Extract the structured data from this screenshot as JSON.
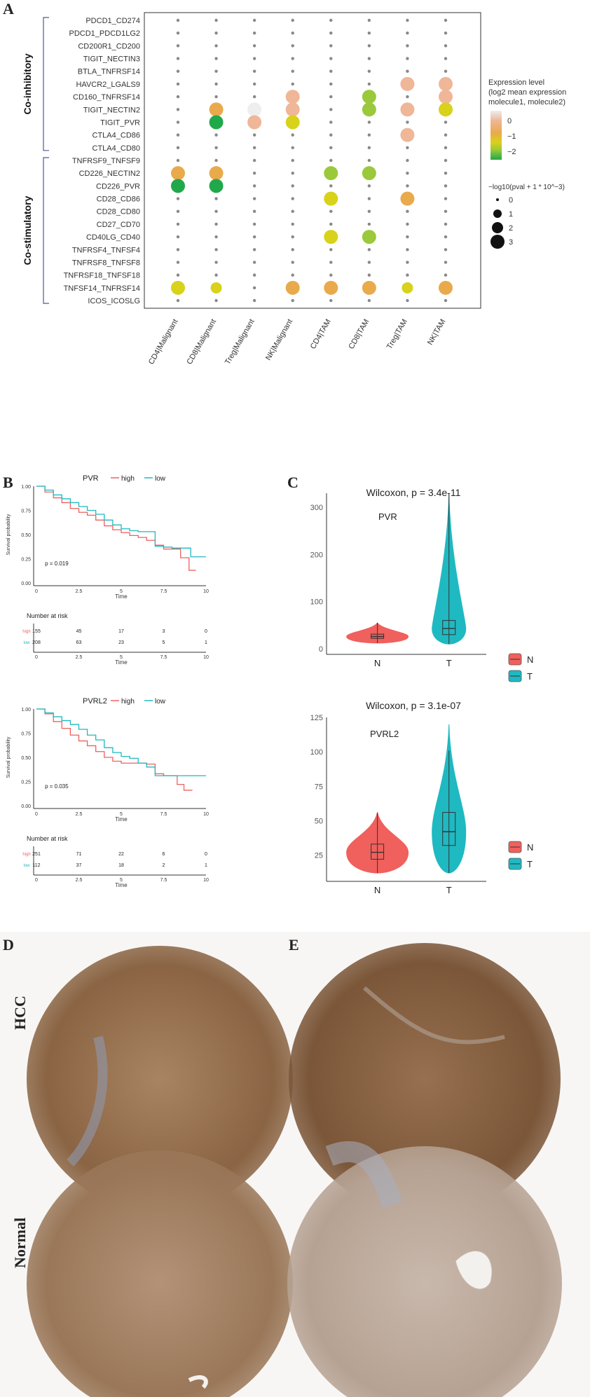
{
  "panels": {
    "a": {
      "letter": "A"
    },
    "b": {
      "letter": "B"
    },
    "c": {
      "letter": "C"
    },
    "d": {
      "letter": "D"
    },
    "e": {
      "letter": "E"
    }
  },
  "dotplot": {
    "group_labels": [
      "Co-inhibitory",
      "Co-stimulatory"
    ],
    "colors": [
      "#eeeeee",
      "#efb698",
      "#e9aa4b",
      "#d8d21a",
      "#9ac93b",
      "#21a84a"
    ],
    "legend_expr_title": [
      "Expression level",
      "(log2 mean expression",
      "molecule1, molecule2)"
    ],
    "legend_expr_ticks": [
      "0",
      "−1",
      "−2"
    ],
    "legend_size_title": "−log10(pval + 1 * 10^−3)",
    "legend_size_ticks": [
      "0",
      "1",
      "2",
      "3"
    ]
  },
  "chart_data": [
    {
      "type": "scatter",
      "title": "",
      "x_categories": [
        "CD4|Malignant",
        "CD8|Malignant",
        "Treg|Malignant",
        "NK|Malignant",
        "CD4|TAM",
        "CD8|TAM",
        "Treg|TAM",
        "NK|TAM"
      ],
      "y_categories": [
        "PDCD1_CD274",
        "PDCD1_PDCD1LG2",
        "CD200R1_CD200",
        "TIGIT_NECTIN3",
        "BTLA_TNFRSF14",
        "HAVCR2_LGALS9",
        "CD160_TNFRSF14",
        "TIGIT_NECTIN2",
        "TIGIT_PVR",
        "CTLA4_CD86",
        "CTLA4_CD80",
        "TNFRSF9_TNFSF9",
        "CD226_NECTIN2",
        "CD226_PVR",
        "CD28_CD86",
        "CD28_CD80",
        "CD27_CD70",
        "CD40LG_CD40",
        "TNFRSF4_TNFSF4",
        "TNFRSF8_TNFSF8",
        "TNFRSF18_TNFSF18",
        "TNFSF14_TNFRSF14",
        "ICOS_ICOSLG"
      ],
      "color_meaning": "log2 mean expression (molecule1, molecule2)",
      "size_meaning": "-log10(pval + 1e-3)",
      "points": [
        {
          "x": "Treg|TAM",
          "y": "HAVCR2_LGALS9",
          "expression": 0.0,
          "neglog_p": 3
        },
        {
          "x": "NK|TAM",
          "y": "HAVCR2_LGALS9",
          "expression": 0.0,
          "neglog_p": 3
        },
        {
          "x": "NK|Malignant",
          "y": "CD160_TNFRSF14",
          "expression": 0.0,
          "neglog_p": 3
        },
        {
          "x": "CD8|TAM",
          "y": "CD160_TNFRSF14",
          "expression": -1.6,
          "neglog_p": 3
        },
        {
          "x": "NK|TAM",
          "y": "CD160_TNFRSF14",
          "expression": 0.1,
          "neglog_p": 3
        },
        {
          "x": "CD8|Malignant",
          "y": "TIGIT_NECTIN2",
          "expression": -0.7,
          "neglog_p": 3
        },
        {
          "x": "Treg|Malignant",
          "y": "TIGIT_NECTIN2",
          "expression": 0.4,
          "neglog_p": 3
        },
        {
          "x": "NK|Malignant",
          "y": "TIGIT_NECTIN2",
          "expression": 0.0,
          "neglog_p": 3
        },
        {
          "x": "CD8|TAM",
          "y": "TIGIT_NECTIN2",
          "expression": -1.7,
          "neglog_p": 3
        },
        {
          "x": "Treg|TAM",
          "y": "TIGIT_NECTIN2",
          "expression": 0.0,
          "neglog_p": 3
        },
        {
          "x": "NK|TAM",
          "y": "TIGIT_NECTIN2",
          "expression": -1.0,
          "neglog_p": 3
        },
        {
          "x": "CD8|Malignant",
          "y": "TIGIT_PVR",
          "expression": -2.2,
          "neglog_p": 3
        },
        {
          "x": "Treg|Malignant",
          "y": "TIGIT_PVR",
          "expression": -0.2,
          "neglog_p": 3
        },
        {
          "x": "NK|Malignant",
          "y": "TIGIT_PVR",
          "expression": -1.2,
          "neglog_p": 3
        },
        {
          "x": "Treg|TAM",
          "y": "CTLA4_CD86",
          "expression": 0.0,
          "neglog_p": 3
        },
        {
          "x": "CD4|Malignant",
          "y": "CD226_NECTIN2",
          "expression": -0.7,
          "neglog_p": 3
        },
        {
          "x": "CD8|Malignant",
          "y": "CD226_NECTIN2",
          "expression": -0.7,
          "neglog_p": 3
        },
        {
          "x": "CD4|TAM",
          "y": "CD226_NECTIN2",
          "expression": -1.8,
          "neglog_p": 3
        },
        {
          "x": "CD8|TAM",
          "y": "CD226_NECTIN2",
          "expression": -1.8,
          "neglog_p": 3
        },
        {
          "x": "CD4|Malignant",
          "y": "CD226_PVR",
          "expression": -2.3,
          "neglog_p": 3
        },
        {
          "x": "CD8|Malignant",
          "y": "CD226_PVR",
          "expression": -2.3,
          "neglog_p": 3
        },
        {
          "x": "CD4|TAM",
          "y": "CD28_CD86",
          "expression": -1.2,
          "neglog_p": 3
        },
        {
          "x": "Treg|TAM",
          "y": "CD28_CD86",
          "expression": -0.7,
          "neglog_p": 3
        },
        {
          "x": "CD4|TAM",
          "y": "CD40LG_CD40",
          "expression": -1.2,
          "neglog_p": 3
        },
        {
          "x": "CD8|TAM",
          "y": "CD40LG_CD40",
          "expression": -1.7,
          "neglog_p": 3
        },
        {
          "x": "CD4|Malignant",
          "y": "TNFSF14_TNFRSF14",
          "expression": -1.1,
          "neglog_p": 3
        },
        {
          "x": "CD8|Malignant",
          "y": "TNFSF14_TNFRSF14",
          "expression": -1.3,
          "neglog_p": 2
        },
        {
          "x": "NK|Malignant",
          "y": "TNFSF14_TNFRSF14",
          "expression": -0.8,
          "neglog_p": 3
        },
        {
          "x": "CD4|TAM",
          "y": "TNFSF14_TNFRSF14",
          "expression": -0.8,
          "neglog_p": 3
        },
        {
          "x": "CD8|TAM",
          "y": "TNFSF14_TNFRSF14",
          "expression": -0.9,
          "neglog_p": 3
        },
        {
          "x": "Treg|TAM",
          "y": "TNFSF14_TNFRSF14",
          "expression": -1.1,
          "neglog_p": 2
        },
        {
          "x": "NK|TAM",
          "y": "TNFSF14_TNFRSF14",
          "expression": -0.7,
          "neglog_p": 3
        }
      ],
      "default_point": {
        "neglog_p": 0
      }
    },
    {
      "type": "line",
      "title": "PVR",
      "xlabel": "Time",
      "ylabel": "Survival probability",
      "xlim": [
        0,
        10
      ],
      "ylim": [
        0,
        1
      ],
      "x_ticks": [
        "0",
        "2.5",
        "5",
        "7.5",
        "10"
      ],
      "y_ticks": [
        "0.00",
        "0.25",
        "0.50",
        "0.75",
        "1.00"
      ],
      "pvalue": "p = 0.019",
      "series": [
        {
          "name": "high",
          "color": "#f0605d",
          "points": [
            [
              0,
              1
            ],
            [
              0.5,
              0.94
            ],
            [
              1,
              0.88
            ],
            [
              1.5,
              0.83
            ],
            [
              2,
              0.77
            ],
            [
              2.5,
              0.73
            ],
            [
              3,
              0.7
            ],
            [
              3.5,
              0.65
            ],
            [
              4,
              0.59
            ],
            [
              4.5,
              0.55
            ],
            [
              5,
              0.52
            ],
            [
              5.5,
              0.49
            ],
            [
              6,
              0.47
            ],
            [
              6.5,
              0.44
            ],
            [
              7,
              0.39
            ],
            [
              7.5,
              0.35
            ],
            [
              8,
              0.35
            ],
            [
              8.5,
              0.26
            ],
            [
              9,
              0.13
            ],
            [
              9.4,
              0.13
            ]
          ]
        },
        {
          "name": "low",
          "color": "#1fb9c2",
          "points": [
            [
              0,
              1
            ],
            [
              0.5,
              0.96
            ],
            [
              1,
              0.91
            ],
            [
              1.5,
              0.87
            ],
            [
              2,
              0.83
            ],
            [
              2.5,
              0.79
            ],
            [
              3,
              0.75
            ],
            [
              3.5,
              0.71
            ],
            [
              4,
              0.65
            ],
            [
              4.5,
              0.6
            ],
            [
              5,
              0.56
            ],
            [
              5.5,
              0.54
            ],
            [
              6,
              0.53
            ],
            [
              6.5,
              0.53
            ],
            [
              7,
              0.38
            ],
            [
              7.5,
              0.37
            ],
            [
              8,
              0.36
            ],
            [
              9,
              0.36
            ],
            [
              9.1,
              0.27
            ],
            [
              10,
              0.27
            ]
          ]
        }
      ],
      "risk_table": {
        "title": "Number at risk",
        "rows": [
          {
            "name": "high",
            "values": [
              "155",
              "45",
              "17",
              "3",
              "0"
            ]
          },
          {
            "name": "low",
            "values": [
              "208",
              "63",
              "23",
              "5",
              "1"
            ]
          }
        ]
      }
    },
    {
      "type": "line",
      "title": "PVRL2",
      "xlabel": "Time",
      "ylabel": "Survival probability",
      "xlim": [
        0,
        10
      ],
      "ylim": [
        0,
        1
      ],
      "x_ticks": [
        "0",
        "2.5",
        "5",
        "7.5",
        "10"
      ],
      "y_ticks": [
        "0.00",
        "0.25",
        "0.50",
        "0.75",
        "1.00"
      ],
      "pvalue": "p = 0.035",
      "series": [
        {
          "name": "high",
          "color": "#f0605d",
          "points": [
            [
              0,
              1
            ],
            [
              0.5,
              0.95
            ],
            [
              1,
              0.87
            ],
            [
              1.5,
              0.8
            ],
            [
              2,
              0.73
            ],
            [
              2.5,
              0.67
            ],
            [
              3,
              0.62
            ],
            [
              3.5,
              0.56
            ],
            [
              4,
              0.5
            ],
            [
              4.5,
              0.46
            ],
            [
              5,
              0.44
            ],
            [
              5.5,
              0.44
            ],
            [
              6,
              0.44
            ],
            [
              6.5,
              0.43
            ],
            [
              7,
              0.33
            ],
            [
              7.5,
              0.31
            ],
            [
              8,
              0.31
            ],
            [
              8.3,
              0.22
            ],
            [
              8.7,
              0.16
            ],
            [
              9.2,
              0.16
            ]
          ]
        },
        {
          "name": "low",
          "color": "#1fb9c2",
          "points": [
            [
              0,
              1
            ],
            [
              0.5,
              0.96
            ],
            [
              1,
              0.92
            ],
            [
              1.5,
              0.88
            ],
            [
              2,
              0.84
            ],
            [
              2.5,
              0.79
            ],
            [
              3,
              0.73
            ],
            [
              3.5,
              0.68
            ],
            [
              4,
              0.6
            ],
            [
              4.5,
              0.55
            ],
            [
              5,
              0.51
            ],
            [
              5.5,
              0.49
            ],
            [
              6,
              0.44
            ],
            [
              6.5,
              0.4
            ],
            [
              7,
              0.31
            ],
            [
              7.5,
              0.31
            ],
            [
              8,
              0.31
            ],
            [
              9,
              0.31
            ],
            [
              10,
              0.31
            ]
          ]
        }
      ],
      "risk_table": {
        "title": "Number at risk",
        "rows": [
          {
            "name": "high",
            "values": [
              "251",
              "71",
              "22",
              "6",
              "0"
            ]
          },
          {
            "name": "low",
            "values": [
              "112",
              "37",
              "18",
              "2",
              "1"
            ]
          }
        ]
      }
    },
    {
      "type": "violin",
      "title": "PVR",
      "subtitle": "Wilcoxon, p = 3.4e-11",
      "categories": [
        "N",
        "T"
      ],
      "ylim": [
        0,
        330
      ],
      "y_ticks": [
        0,
        100,
        200,
        300
      ],
      "legend": [
        {
          "name": "N",
          "color": "#f0605d"
        },
        {
          "name": "T",
          "color": "#1fb9c2"
        }
      ],
      "groups": [
        {
          "name": "N",
          "min": 12,
          "q1": 22,
          "median": 26,
          "q3": 31,
          "max": 55
        },
        {
          "name": "T",
          "min": 10,
          "q1": 30,
          "median": 43,
          "q3": 60,
          "max": 330
        }
      ]
    },
    {
      "type": "violin",
      "title": "PVRL2",
      "subtitle": "Wilcoxon, p = 3.1e-07",
      "categories": [
        "N",
        "T"
      ],
      "ylim": [
        10,
        125
      ],
      "y_ticks": [
        25,
        50,
        75,
        100,
        125
      ],
      "legend": [
        {
          "name": "N",
          "color": "#f0605d"
        },
        {
          "name": "T",
          "color": "#1fb9c2"
        }
      ],
      "groups": [
        {
          "name": "N",
          "min": 12,
          "q1": 22,
          "median": 27,
          "q3": 33,
          "max": 56
        },
        {
          "name": "T",
          "min": 12,
          "q1": 32,
          "median": 42,
          "q3": 56,
          "max": 120
        }
      ]
    }
  ],
  "ihc": {
    "row_labels": [
      "HCC",
      "Normal"
    ]
  }
}
